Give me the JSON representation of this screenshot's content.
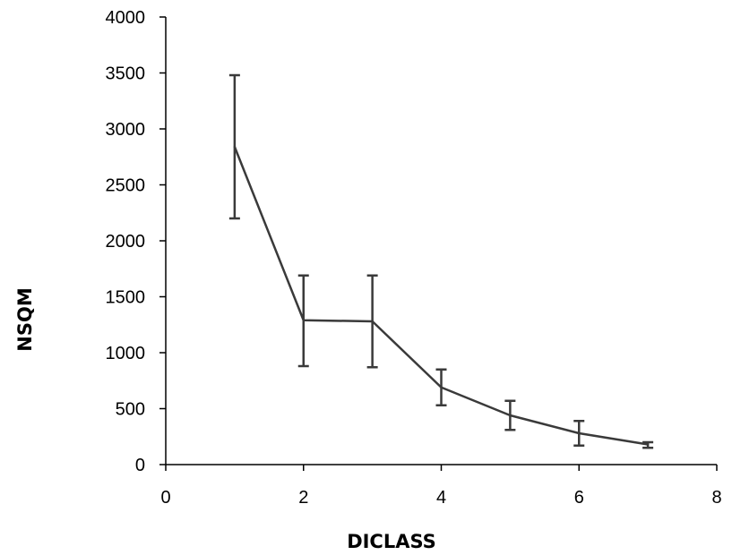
{
  "chart_data": {
    "type": "line",
    "xlabel": "DICLASS",
    "ylabel": "NSQM",
    "xlim": [
      0,
      8
    ],
    "ylim": [
      0,
      4000
    ],
    "x_ticks": [
      0,
      2,
      4,
      6,
      8
    ],
    "y_ticks": [
      0,
      500,
      1000,
      1500,
      2000,
      2500,
      3000,
      3500,
      4000
    ],
    "grid": false,
    "legend": "none",
    "line_color": "#3a3a3a",
    "series": [
      {
        "x": [
          1,
          2,
          3,
          4,
          5,
          6,
          7
        ],
        "y": [
          2840,
          1290,
          1280,
          690,
          440,
          280,
          180
        ],
        "error_low": [
          2200,
          880,
          870,
          530,
          310,
          170,
          150
        ],
        "error_high": [
          3480,
          1690,
          1690,
          850,
          570,
          390,
          200
        ]
      }
    ]
  }
}
